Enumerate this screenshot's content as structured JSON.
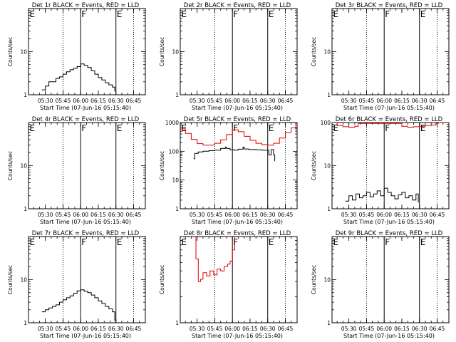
{
  "figure": {
    "xlabel": "Start Time (07-Jun-16 05:15:40)",
    "ylabel": "Counts/sec",
    "colors": {
      "events": "#000000",
      "lld": "#dd0000",
      "axes": "#000000",
      "background": "#ffffff"
    },
    "marker_labels": [
      "E",
      "F",
      "E"
    ]
  },
  "chart_data": [
    {
      "type": "line",
      "title": "Det 1r BLACK = Events, RED = LLD",
      "xlim": [
        "05:15:40",
        "06:55:00"
      ],
      "yscale": "log",
      "ylim": [
        1,
        100
      ],
      "xticks": [
        "05:30",
        "05:45",
        "06:00",
        "06:15",
        "06:30",
        "06:45"
      ],
      "yticks": [
        1,
        10,
        100
      ],
      "ytick_labels": [
        "1",
        "10",
        ""
      ],
      "solid_markers": [
        "06:00",
        "06:30"
      ],
      "dotted_markers": [
        "05:45",
        "06:45"
      ],
      "marker_labels": [
        {
          "text": "E",
          "x": "05:16"
        },
        {
          "text": "F",
          "x": "06:00"
        },
        {
          "text": "E",
          "x": "06:30"
        }
      ],
      "series": [
        {
          "color": "#000000",
          "x": [
            "05:27",
            "05:30",
            "05:33",
            "05:36",
            "05:39",
            "05:42",
            "05:45",
            "05:48",
            "05:51",
            "05:54",
            "05:57",
            "06:00",
            "06:03",
            "06:06",
            "06:09",
            "06:12",
            "06:15",
            "06:18",
            "06:21",
            "06:24",
            "06:27",
            "06:29"
          ],
          "y": [
            1.3,
            1.6,
            2.0,
            2.0,
            2.4,
            2.6,
            3.0,
            3.4,
            3.8,
            4.1,
            4.5,
            5.2,
            4.8,
            4.3,
            3.6,
            3.0,
            2.5,
            2.2,
            1.9,
            1.7,
            1.5,
            1.2
          ]
        }
      ]
    },
    {
      "type": "line",
      "title": "Det 2r BLACK = Events, RED = LLD",
      "xlim": [
        "05:15:40",
        "06:55:00"
      ],
      "yscale": "log",
      "ylim": [
        1,
        100
      ],
      "xticks": [
        "05:30",
        "05:45",
        "06:00",
        "06:15",
        "06:30",
        "06:45"
      ],
      "yticks": [
        1,
        10,
        100
      ],
      "ytick_labels": [
        "1",
        "10",
        ""
      ],
      "solid_markers": [
        "06:00",
        "06:30"
      ],
      "dotted_markers": [
        "05:45",
        "06:45"
      ],
      "marker_labels": [
        {
          "text": "E",
          "x": "05:16"
        },
        {
          "text": "F",
          "x": "06:00"
        },
        {
          "text": "E",
          "x": "06:30"
        }
      ],
      "series": []
    },
    {
      "type": "line",
      "title": "Det 3r BLACK = Events, RED = LLD",
      "xlim": [
        "05:15:40",
        "06:55:00"
      ],
      "yscale": "log",
      "ylim": [
        1,
        100
      ],
      "xticks": [
        "05:30",
        "05:45",
        "06:00",
        "06:15",
        "06:30",
        "06:45"
      ],
      "yticks": [
        1,
        10,
        100
      ],
      "ytick_labels": [
        "1",
        "10",
        ""
      ],
      "solid_markers": [
        "06:00",
        "06:30"
      ],
      "dotted_markers": [
        "05:45",
        "06:45"
      ],
      "marker_labels": [
        {
          "text": "E",
          "x": "05:16"
        },
        {
          "text": "F",
          "x": "06:00"
        },
        {
          "text": "E",
          "x": "06:30"
        }
      ],
      "series": []
    },
    {
      "type": "line",
      "title": "Det 4r BLACK = Events, RED = LLD",
      "xlim": [
        "05:15:40",
        "06:55:00"
      ],
      "yscale": "log",
      "ylim": [
        1,
        100
      ],
      "xticks": [
        "05:30",
        "05:45",
        "06:00",
        "06:15",
        "06:30",
        "06:45"
      ],
      "yticks": [
        1,
        10,
        100
      ],
      "ytick_labels": [
        "1",
        "10",
        ""
      ],
      "solid_markers": [
        "06:00",
        "06:30"
      ],
      "dotted_markers": [
        "05:45",
        "06:45"
      ],
      "marker_labels": [
        {
          "text": "E",
          "x": "05:16"
        },
        {
          "text": "F",
          "x": "06:00"
        },
        {
          "text": "E",
          "x": "06:30"
        }
      ],
      "series": []
    },
    {
      "type": "line",
      "title": "Det 5r BLACK = Events, RED = LLD",
      "xlim": [
        "05:15:40",
        "06:55:00"
      ],
      "yscale": "log",
      "ylim": [
        1,
        1000
      ],
      "xticks": [
        "05:30",
        "05:45",
        "06:00",
        "06:15",
        "06:30",
        "06:45"
      ],
      "yticks": [
        1,
        10,
        100,
        1000
      ],
      "ytick_labels": [
        "1",
        "10",
        "100",
        "1000"
      ],
      "solid_markers": [
        "06:00",
        "06:30"
      ],
      "dotted_markers": [
        "05:45",
        "06:45"
      ],
      "marker_labels": [
        {
          "text": "E",
          "x": "05:16"
        },
        {
          "text": "F",
          "x": "06:00"
        },
        {
          "text": "E",
          "x": "06:30"
        }
      ],
      "series": [
        {
          "color": "#000000",
          "x": [
            "05:27",
            "05:28",
            "05:31",
            "05:35",
            "05:40",
            "05:45",
            "05:50",
            "05:54",
            "05:55",
            "05:58",
            "06:02",
            "06:05",
            "06:09",
            "06:10",
            "06:14",
            "06:20",
            "06:25",
            "06:30",
            "06:31",
            "06:33",
            "06:35",
            "06:36"
          ],
          "y": [
            55,
            85,
            95,
            100,
            105,
            110,
            125,
            140,
            125,
            112,
            110,
            118,
            140,
            120,
            115,
            112,
            110,
            110,
            75,
            115,
            75,
            45
          ]
        },
        {
          "color": "#dd0000",
          "x": [
            "05:15:40",
            "05:20",
            "05:25",
            "05:30",
            "05:35",
            "05:40",
            "05:45",
            "05:50",
            "05:55",
            "06:00",
            "06:05",
            "06:10",
            "06:15",
            "06:20",
            "06:25",
            "06:30",
            "06:35",
            "06:40",
            "06:45",
            "06:50",
            "06:55"
          ],
          "y": [
            600,
            420,
            260,
            185,
            165,
            165,
            190,
            250,
            380,
            560,
            480,
            330,
            240,
            190,
            170,
            165,
            190,
            290,
            450,
            650,
            950
          ]
        }
      ]
    },
    {
      "type": "line",
      "title": "Det 6r BLACK = Events, RED = LLD",
      "xlim": [
        "05:15:40",
        "06:55:00"
      ],
      "yscale": "log",
      "ylim": [
        1,
        100
      ],
      "xticks": [
        "05:30",
        "05:45",
        "06:00",
        "06:15",
        "06:30",
        "06:45"
      ],
      "yticks": [
        1,
        10,
        100
      ],
      "ytick_labels": [
        "1",
        "10",
        "100"
      ],
      "solid_markers": [
        "06:00",
        "06:30"
      ],
      "dotted_markers": [
        "05:45",
        "06:45"
      ],
      "marker_labels": [
        {
          "text": "E",
          "x": "05:16"
        },
        {
          "text": "F",
          "x": "06:00"
        },
        {
          "text": "E",
          "x": "06:30"
        }
      ],
      "series": [
        {
          "color": "#000000",
          "x": [
            "05:27",
            "05:30",
            "05:33",
            "05:36",
            "05:39",
            "05:42",
            "05:45",
            "05:48",
            "05:51",
            "05:54",
            "05:57",
            "06:00",
            "06:03",
            "06:06",
            "06:09",
            "06:12",
            "06:15",
            "06:18",
            "06:21",
            "06:24",
            "06:27",
            "06:29"
          ],
          "y": [
            1.5,
            2.0,
            1.6,
            2.2,
            1.8,
            2.0,
            2.4,
            1.9,
            2.2,
            2.6,
            2.0,
            3.0,
            2.4,
            2.0,
            1.7,
            2.1,
            2.4,
            1.8,
            2.0,
            1.6,
            2.2,
            1.4
          ]
        },
        {
          "color": "#dd0000",
          "x": [
            "05:15:40",
            "05:20",
            "05:25",
            "05:30",
            "05:35",
            "05:38",
            "06:11",
            "06:15",
            "06:20",
            "06:25",
            "06:30",
            "06:35",
            "06:40",
            "06:44",
            "06:46",
            "06:50",
            "06:55"
          ],
          "y": [
            100,
            85,
            80,
            78,
            82,
            95,
            95,
            82,
            78,
            80,
            82,
            85,
            88,
            95,
            100,
            100,
            100
          ]
        }
      ]
    },
    {
      "type": "line",
      "title": "Det 7r BLACK = Events, RED = LLD",
      "xlim": [
        "05:15:40",
        "06:55:00"
      ],
      "yscale": "log",
      "ylim": [
        1,
        100
      ],
      "xticks": [
        "05:30",
        "05:45",
        "06:00",
        "06:15",
        "06:30",
        "06:45"
      ],
      "yticks": [
        1,
        10,
        100
      ],
      "ytick_labels": [
        "1",
        "10",
        ""
      ],
      "solid_markers": [
        "06:00",
        "06:30"
      ],
      "dotted_markers": [
        "05:45",
        "06:45"
      ],
      "marker_labels": [
        {
          "text": "E",
          "x": "05:16"
        },
        {
          "text": "F",
          "x": "06:00"
        },
        {
          "text": "E",
          "x": "06:30"
        }
      ],
      "series": [
        {
          "color": "#000000",
          "x": [
            "05:27",
            "05:30",
            "05:33",
            "05:36",
            "05:39",
            "05:42",
            "05:45",
            "05:48",
            "05:51",
            "05:54",
            "05:57",
            "06:00",
            "06:03",
            "06:06",
            "06:09",
            "06:12",
            "06:15",
            "06:18",
            "06:21",
            "06:24",
            "06:27",
            "06:29"
          ],
          "y": [
            1.8,
            2.0,
            2.2,
            2.4,
            2.6,
            3.0,
            3.4,
            3.8,
            4.2,
            4.8,
            5.5,
            5.8,
            5.4,
            5.0,
            4.4,
            3.8,
            3.2,
            2.8,
            2.4,
            2.1,
            1.8,
            1.1
          ]
        }
      ]
    },
    {
      "type": "line",
      "title": "Det 8r BLACK = Events, RED = LLD",
      "xlim": [
        "05:15:40",
        "06:55:00"
      ],
      "yscale": "log",
      "ylim": [
        1,
        10
      ],
      "xticks": [
        "05:30",
        "05:45",
        "06:00",
        "06:15",
        "06:30",
        "06:45"
      ],
      "yticks": [
        1,
        10
      ],
      "ytick_labels": [
        "1",
        ""
      ],
      "solid_markers": [
        "06:00",
        "06:30"
      ],
      "dotted_markers": [
        "05:45",
        "06:45"
      ],
      "marker_labels": [
        {
          "text": "E",
          "x": "05:16"
        },
        {
          "text": "F",
          "x": "06:00"
        },
        {
          "text": "E",
          "x": "06:30"
        }
      ],
      "series": [
        {
          "color": "#dd0000",
          "x": [
            "05:27",
            "05:29",
            "05:31",
            "05:33",
            "05:35",
            "05:38",
            "05:41",
            "05:44",
            "05:47",
            "05:50",
            "05:53",
            "05:56",
            "05:58",
            "06:00",
            "06:02"
          ],
          "y": [
            10,
            5.5,
            3.0,
            3.2,
            3.8,
            3.5,
            4.0,
            3.6,
            4.2,
            4.0,
            4.5,
            4.8,
            5.2,
            7.0,
            10
          ]
        }
      ]
    },
    {
      "type": "line",
      "title": "Det 9r BLACK = Events, RED = LLD",
      "xlim": [
        "05:15:40",
        "06:55:00"
      ],
      "yscale": "log",
      "ylim": [
        1,
        100
      ],
      "xticks": [
        "05:30",
        "05:45",
        "06:00",
        "06:15",
        "06:30",
        "06:45"
      ],
      "yticks": [
        1,
        10,
        100
      ],
      "ytick_labels": [
        "1",
        "10",
        ""
      ],
      "solid_markers": [
        "06:00",
        "06:30"
      ],
      "dotted_markers": [
        "05:45",
        "06:45"
      ],
      "marker_labels": [
        {
          "text": "E",
          "x": "05:16"
        },
        {
          "text": "F",
          "x": "06:00"
        },
        {
          "text": "E",
          "x": "06:30"
        }
      ],
      "series": []
    }
  ]
}
